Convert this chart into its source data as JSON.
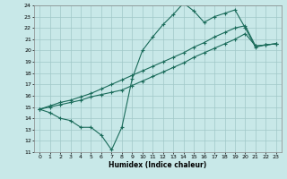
{
  "xlabel": "Humidex (Indice chaleur)",
  "bg_color": "#c8e8e8",
  "line_color": "#1a6b5a",
  "grid_color": "#a0c8c8",
  "xmin": 0,
  "xmax": 23,
  "ymin": 11,
  "ymax": 24,
  "line1_x": [
    0,
    1,
    2,
    3,
    4,
    5,
    6,
    7,
    8,
    9,
    10,
    11,
    12,
    13,
    14,
    15,
    16,
    17,
    18,
    19,
    20,
    21,
    22,
    23
  ],
  "line1_y": [
    14.8,
    14.5,
    14.0,
    13.8,
    13.2,
    13.2,
    12.5,
    11.2,
    13.2,
    17.5,
    20.0,
    21.2,
    22.3,
    23.2,
    24.2,
    23.5,
    22.5,
    23.0,
    23.3,
    23.6,
    22.0,
    20.3,
    20.5,
    20.6
  ],
  "line2_x": [
    0,
    1,
    2,
    3,
    4,
    5,
    6,
    7,
    8,
    9,
    10,
    11,
    12,
    13,
    14,
    15,
    16,
    17,
    18,
    19,
    20,
    21,
    22,
    23
  ],
  "line2_y": [
    14.8,
    15.0,
    15.2,
    15.4,
    15.6,
    15.9,
    16.1,
    16.3,
    16.5,
    16.9,
    17.3,
    17.7,
    18.1,
    18.5,
    18.9,
    19.4,
    19.8,
    20.2,
    20.6,
    21.0,
    21.5,
    20.4,
    20.5,
    20.6
  ],
  "line3_x": [
    0,
    1,
    2,
    3,
    4,
    5,
    6,
    7,
    8,
    9,
    10,
    11,
    12,
    13,
    14,
    15,
    16,
    17,
    18,
    19,
    20,
    21,
    22,
    23
  ],
  "line3_y": [
    14.8,
    15.1,
    15.4,
    15.6,
    15.9,
    16.2,
    16.6,
    17.0,
    17.4,
    17.8,
    18.2,
    18.6,
    19.0,
    19.4,
    19.8,
    20.3,
    20.7,
    21.2,
    21.6,
    22.0,
    22.2,
    20.4,
    20.5,
    20.6
  ]
}
